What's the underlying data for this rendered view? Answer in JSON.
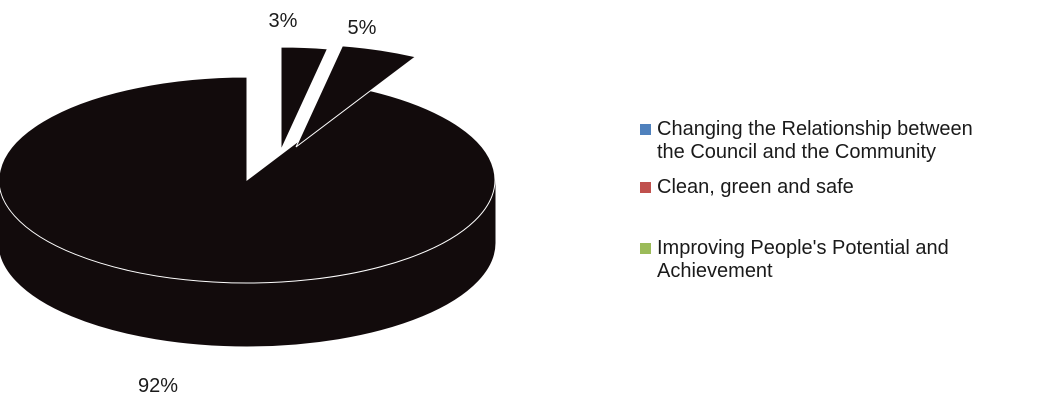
{
  "chart_data": {
    "type": "pie",
    "title": "",
    "three_d": true,
    "exploded": true,
    "legend_position": "right",
    "slice_fill_rendered": "#120b0c",
    "categories": [
      "Changing the Relationship between the Council and the Community",
      "Clean, green and safe",
      "Improving People's Potential and Achievement"
    ],
    "values": [
      3,
      5,
      92
    ],
    "value_labels": [
      "3%",
      "5%",
      "92%"
    ],
    "legend_colors": [
      "#4f81bd",
      "#c0504d",
      "#9bbb59"
    ]
  },
  "legend": {
    "items": [
      {
        "label": "Changing the Relationship between the Council and the Community",
        "line1": "Changing the Relationship between",
        "line2": "the Council and the Community",
        "color": "#4f81bd"
      },
      {
        "label": "Clean, green and safe",
        "line1": "Clean, green and safe",
        "line2": "",
        "color": "#c0504d"
      },
      {
        "label": "Improving People's Potential and Achievement",
        "line1": "Improving People's Potential and",
        "line2": "Achievement",
        "color": "#9bbb59"
      }
    ]
  }
}
